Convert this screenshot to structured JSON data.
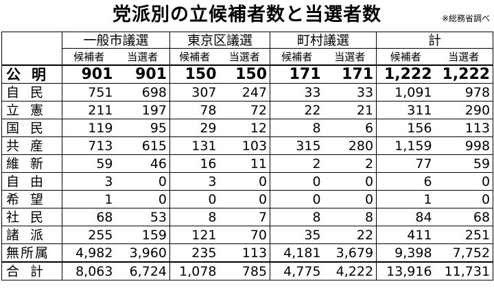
{
  "title": "党派別の立候補者数と当選者数",
  "note": "※総務省調べ",
  "groups": [
    "一般市議選",
    "東京区議選",
    "町村議選",
    "計"
  ],
  "subheaders": [
    "候補者",
    "当選者"
  ],
  "rows": [
    {
      "party": "公明",
      "values": [
        "901",
        "901",
        "150",
        "150",
        "171",
        "171",
        "1,222",
        "1,222"
      ]
    },
    {
      "party": "自民",
      "values": [
        "751",
        "698",
        "307",
        "247",
        "33",
        "33",
        "1,091",
        "978"
      ]
    },
    {
      "party": "立憲",
      "values": [
        "211",
        "197",
        "78",
        "72",
        "22",
        "21",
        "311",
        "290"
      ]
    },
    {
      "party": "国民",
      "values": [
        "119",
        "95",
        "29",
        "12",
        "8",
        "6",
        "156",
        "113"
      ]
    },
    {
      "party": "共産",
      "values": [
        "713",
        "615",
        "131",
        "103",
        "315",
        "280",
        "1,159",
        "998"
      ]
    },
    {
      "party": "維新",
      "values": [
        "59",
        "46",
        "16",
        "11",
        "2",
        "2",
        "77",
        "59"
      ]
    },
    {
      "party": "自由",
      "values": [
        "3",
        "0",
        "3",
        "0",
        "0",
        "0",
        "6",
        "0"
      ]
    },
    {
      "party": "希望",
      "values": [
        "1",
        "0",
        "0",
        "0",
        "0",
        "0",
        "1",
        "0"
      ]
    },
    {
      "party": "社民",
      "values": [
        "68",
        "53",
        "8",
        "7",
        "8",
        "8",
        "84",
        "68"
      ]
    },
    {
      "party": "諸派",
      "values": [
        "255",
        "159",
        "121",
        "70",
        "35",
        "22",
        "411",
        "251"
      ]
    },
    {
      "party": "無所属",
      "values": [
        "4,982",
        "3,960",
        "235",
        "113",
        "4,181",
        "3,679",
        "9,398",
        "7,752"
      ]
    }
  ],
  "total": {
    "party": "合計",
    "values": [
      "8,063",
      "6,724",
      "1,078",
      "785",
      "4,775",
      "4,222",
      "13,916",
      "11,731"
    ]
  }
}
